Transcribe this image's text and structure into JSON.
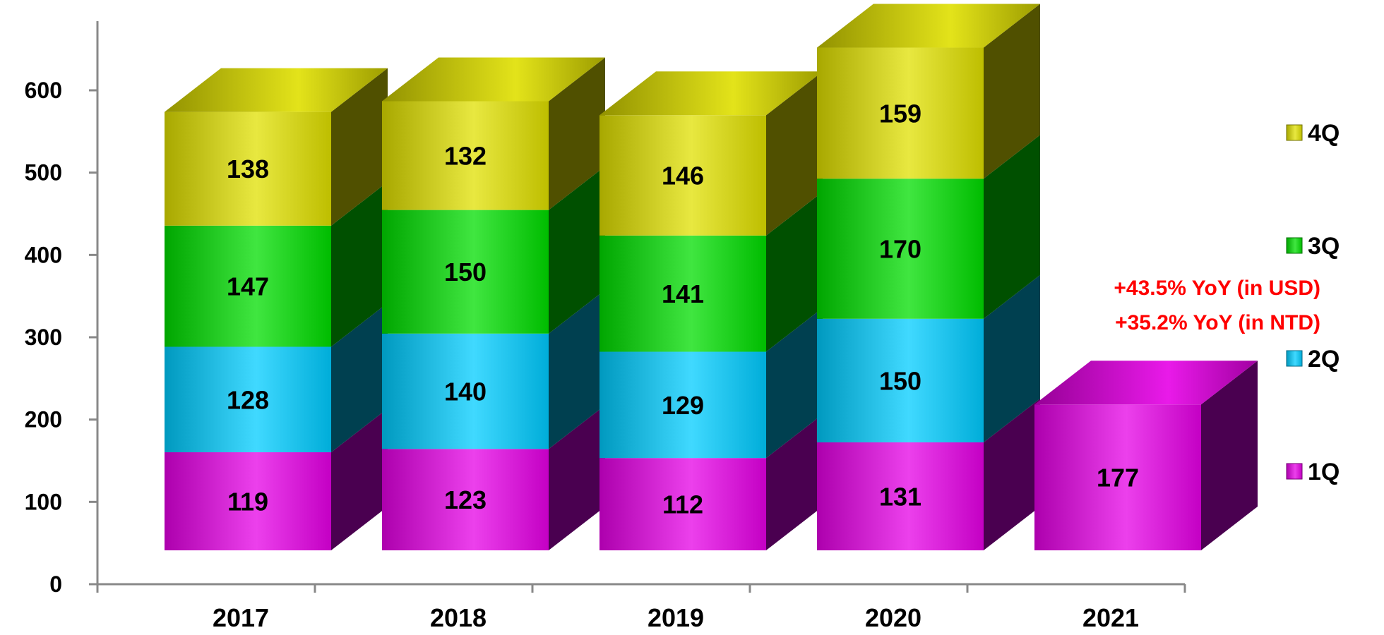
{
  "chart_data": {
    "type": "bar",
    "stacked": true,
    "three_d": true,
    "categories": [
      "2017",
      "2018",
      "2019",
      "2020",
      "2021"
    ],
    "series": [
      {
        "name": "1Q",
        "values": [
          119,
          123,
          112,
          131,
          177
        ],
        "color": "#E600E6",
        "side": "#4A0050"
      },
      {
        "name": "2Q",
        "values": [
          128,
          140,
          129,
          150,
          null
        ],
        "color": "#00CCFF",
        "side": "#004050"
      },
      {
        "name": "3Q",
        "values": [
          147,
          150,
          141,
          170,
          null
        ],
        "color": "#00DD00",
        "side": "#005000"
      },
      {
        "name": "4Q",
        "values": [
          138,
          132,
          146,
          159,
          null
        ],
        "color": "#E0E000",
        "side": "#505000"
      }
    ],
    "yticks": [
      0,
      100,
      200,
      300,
      400,
      500,
      600
    ],
    "ylim": [
      0,
      650
    ],
    "grid": false,
    "legend_position": "right",
    "annotations": [
      "+43.5% YoY (in USD)",
      "+35.2% YoY (in NTD)"
    ],
    "annotation_color": "#FF0000"
  }
}
